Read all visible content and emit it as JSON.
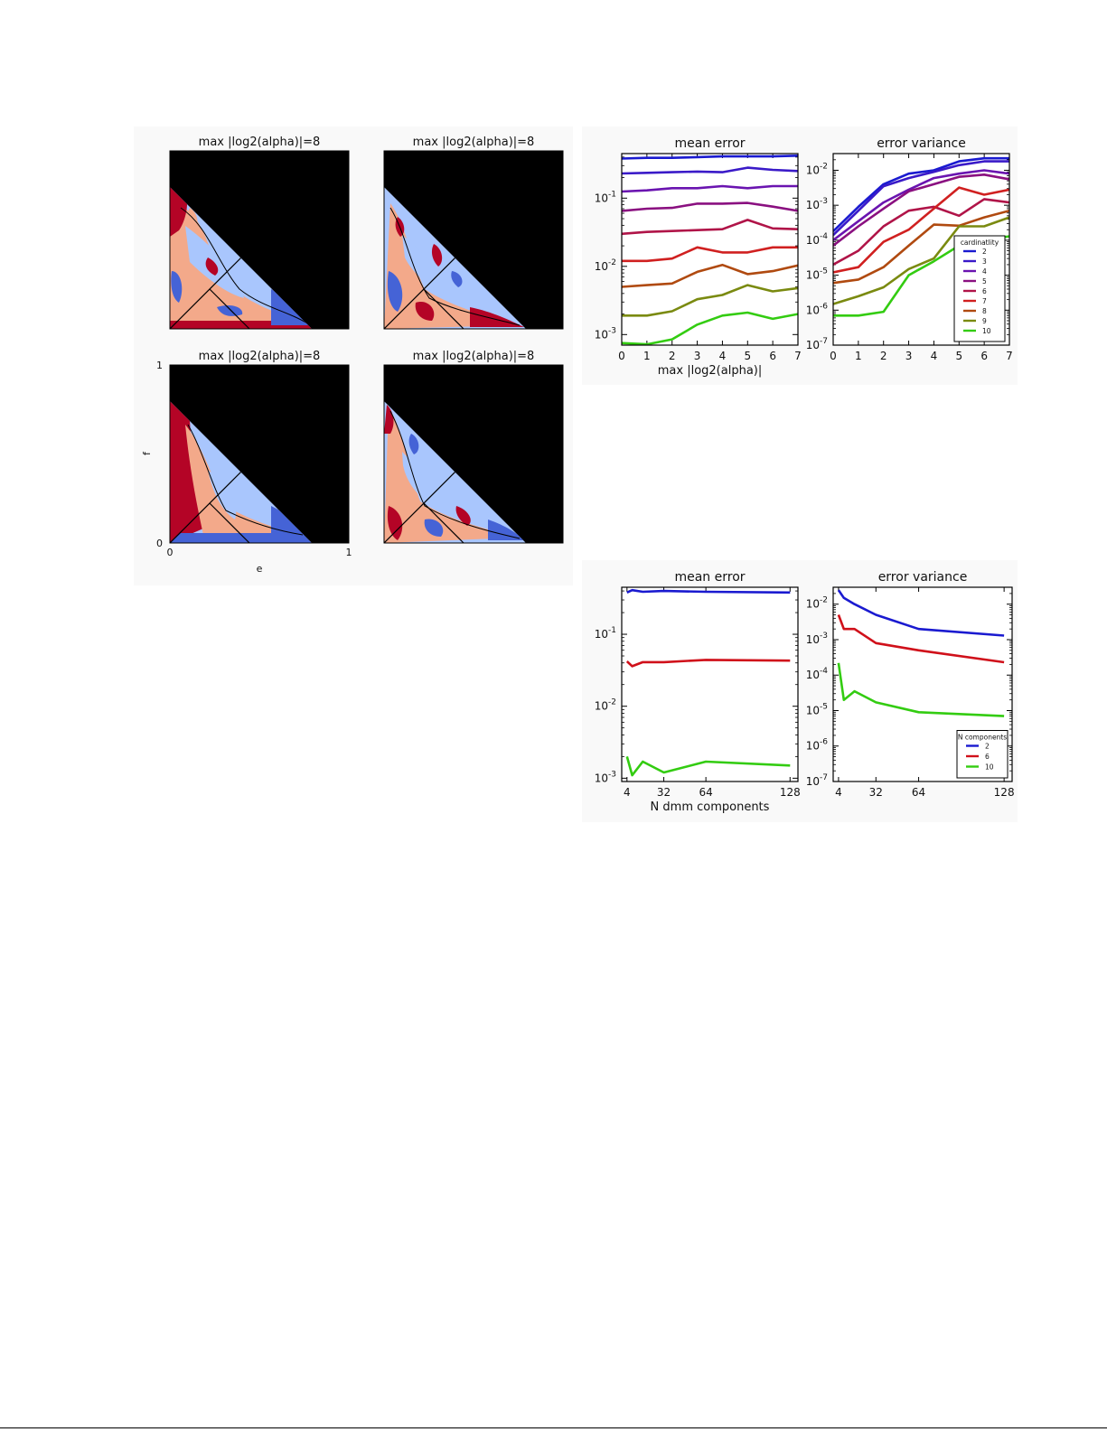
{
  "figure_left": {
    "panel_title": "max |log2(alpha)|=8",
    "panel_titles": [
      "max |log2(alpha)|=8",
      "max |log2(alpha)|=8",
      "max |log2(alpha)|=8",
      "max |log2(alpha)|=8"
    ],
    "xlabel": "e",
    "ylabel": "f",
    "x_ticks": [
      "0",
      "1"
    ],
    "y_ticks": [
      "1",
      "0"
    ],
    "colors": {
      "background": "#000000",
      "dark_red": "#b40426",
      "light_red": "#f3a98a",
      "light_blue": "#a9c6fd",
      "dark_blue": "#4563d6"
    }
  },
  "chart_data": [
    {
      "type": "line",
      "title": "mean error",
      "xlabel": "max |log2(alpha)|",
      "ylabel": "",
      "yscale": "log",
      "x": [
        0,
        1,
        2,
        3,
        4,
        5,
        6,
        7
      ],
      "xlim": [
        0,
        7
      ],
      "ylim": [
        0.0007,
        0.45
      ],
      "x_ticks": [
        "0",
        "1",
        "2",
        "3",
        "4",
        "5",
        "6",
        "7"
      ],
      "y_ticks": [
        {
          "base": "10",
          "exp": "-1",
          "value": 0.1
        },
        {
          "base": "10",
          "exp": "-2",
          "value": 0.01
        },
        {
          "base": "10",
          "exp": "-3",
          "value": 0.001
        }
      ],
      "series": [
        {
          "name": "2",
          "color": "#1a1ad0",
          "values": [
            0.38,
            0.39,
            0.39,
            0.4,
            0.41,
            0.41,
            0.41,
            0.42
          ]
        },
        {
          "name": "3",
          "color": "#3a1ac8",
          "values": [
            0.23,
            0.235,
            0.24,
            0.245,
            0.24,
            0.28,
            0.26,
            0.25
          ]
        },
        {
          "name": "4",
          "color": "#6a14b0",
          "values": [
            0.125,
            0.13,
            0.14,
            0.14,
            0.15,
            0.14,
            0.15,
            0.15
          ]
        },
        {
          "name": "5",
          "color": "#8a1080",
          "values": [
            0.065,
            0.07,
            0.072,
            0.083,
            0.083,
            0.085,
            0.075,
            0.065
          ]
        },
        {
          "name": "6",
          "color": "#b01448",
          "values": [
            0.03,
            0.032,
            0.033,
            0.034,
            0.035,
            0.048,
            0.036,
            0.035
          ]
        },
        {
          "name": "7",
          "color": "#d02020",
          "values": [
            0.012,
            0.012,
            0.013,
            0.019,
            0.016,
            0.016,
            0.019,
            0.019
          ]
        },
        {
          "name": "8",
          "color": "#b04a10",
          "values": [
            0.005,
            0.0053,
            0.0056,
            0.0083,
            0.0105,
            0.0077,
            0.0085,
            0.0103
          ]
        },
        {
          "name": "9",
          "color": "#7a8a10",
          "values": [
            0.0019,
            0.0019,
            0.0022,
            0.0033,
            0.0038,
            0.0053,
            0.0043,
            0.0048
          ]
        },
        {
          "name": "10",
          "color": "#33cc11",
          "values": [
            0.00075,
            0.00072,
            0.00085,
            0.0014,
            0.0019,
            0.0021,
            0.0017,
            0.002
          ]
        }
      ]
    },
    {
      "type": "line",
      "title": "error variance",
      "xlabel": "",
      "ylabel": "",
      "yscale": "log",
      "x": [
        0,
        1,
        2,
        3,
        4,
        5,
        6,
        7
      ],
      "xlim": [
        0,
        7
      ],
      "ylim": [
        1e-07,
        0.03
      ],
      "x_ticks": [
        "0",
        "1",
        "2",
        "3",
        "4",
        "5",
        "6",
        "7"
      ],
      "y_ticks": [
        {
          "base": "10",
          "exp": "-2",
          "value": 0.01
        },
        {
          "base": "10",
          "exp": "-3",
          "value": 0.001
        },
        {
          "base": "10",
          "exp": "-4",
          "value": 0.0001
        },
        {
          "base": "10",
          "exp": "-5",
          "value": 1e-05
        },
        {
          "base": "10",
          "exp": "-6",
          "value": 1e-06
        },
        {
          "base": "10",
          "exp": "-7",
          "value": 1e-07
        }
      ],
      "legend": {
        "title": "cardinatlity",
        "position": "lower right"
      },
      "series": [
        {
          "name": "2",
          "color": "#1a1ad0",
          "values": [
            0.00018,
            0.0009,
            0.004,
            0.008,
            0.01,
            0.018,
            0.022,
            0.022
          ]
        },
        {
          "name": "3",
          "color": "#3a1ac8",
          "values": [
            0.00014,
            0.0007,
            0.0035,
            0.006,
            0.009,
            0.014,
            0.018,
            0.018
          ]
        },
        {
          "name": "4",
          "color": "#6a14b0",
          "values": [
            0.0001,
            0.00035,
            0.0012,
            0.0028,
            0.006,
            0.008,
            0.01,
            0.008
          ]
        },
        {
          "name": "5",
          "color": "#8a1080",
          "values": [
            7e-05,
            0.00025,
            0.0008,
            0.0025,
            0.004,
            0.0065,
            0.0075,
            0.0055
          ]
        },
        {
          "name": "6",
          "color": "#b01448",
          "values": [
            2e-05,
            5e-05,
            0.00025,
            0.0007,
            0.0009,
            0.0005,
            0.0015,
            0.0012
          ]
        },
        {
          "name": "7",
          "color": "#d02020",
          "values": [
            1.2e-05,
            1.7e-05,
            9e-05,
            0.0002,
            0.0008,
            0.0032,
            0.002,
            0.0028
          ]
        },
        {
          "name": "8",
          "color": "#b04a10",
          "values": [
            6e-06,
            7.5e-06,
            1.7e-05,
            7e-05,
            0.00028,
            0.00026,
            0.00045,
            0.0007
          ]
        },
        {
          "name": "9",
          "color": "#7a8a10",
          "values": [
            1.5e-06,
            2.5e-06,
            4.5e-06,
            1.5e-05,
            3e-05,
            0.00025,
            0.00025,
            0.00045
          ]
        },
        {
          "name": "10",
          "color": "#33cc11",
          "values": [
            7e-07,
            7e-07,
            9e-07,
            1e-05,
            2.5e-05,
            7e-05,
            0.0001,
            0.00013
          ]
        }
      ]
    },
    {
      "type": "line",
      "title": "mean error",
      "xlabel": "N dmm components",
      "ylabel": "",
      "yscale": "log",
      "x": [
        4,
        8,
        16,
        32,
        64,
        128
      ],
      "xlim": [
        0,
        134
      ],
      "ylim": [
        0.0009,
        0.45
      ],
      "x_ticks": [
        "4",
        "32",
        "64",
        "128"
      ],
      "x_tick_values": [
        4,
        32,
        64,
        128
      ],
      "y_ticks": [
        {
          "base": "10",
          "exp": "-1",
          "value": 0.1
        },
        {
          "base": "10",
          "exp": "-2",
          "value": 0.01
        },
        {
          "base": "10",
          "exp": "-3",
          "value": 0.001
        }
      ],
      "series": [
        {
          "name": "2",
          "color": "#1a1ad0",
          "values": [
            0.38,
            0.41,
            0.39,
            0.4,
            0.39,
            0.38
          ]
        },
        {
          "name": "6",
          "color": "#d0101a",
          "values": [
            0.042,
            0.036,
            0.041,
            0.041,
            0.044,
            0.043
          ]
        },
        {
          "name": "10",
          "color": "#33cc11",
          "values": [
            0.002,
            0.0011,
            0.0017,
            0.0012,
            0.0017,
            0.0015
          ]
        }
      ]
    },
    {
      "type": "line",
      "title": "error variance",
      "xlabel": "",
      "ylabel": "",
      "yscale": "log",
      "x": [
        4,
        8,
        16,
        32,
        64,
        128
      ],
      "xlim": [
        0,
        134
      ],
      "ylim": [
        1e-07,
        0.03
      ],
      "x_ticks": [
        "4",
        "32",
        "64",
        "128"
      ],
      "x_tick_values": [
        4,
        32,
        64,
        128
      ],
      "y_ticks": [
        {
          "base": "10",
          "exp": "-2",
          "value": 0.01
        },
        {
          "base": "10",
          "exp": "-3",
          "value": 0.001
        },
        {
          "base": "10",
          "exp": "-4",
          "value": 0.0001
        },
        {
          "base": "10",
          "exp": "-5",
          "value": 1e-05
        },
        {
          "base": "10",
          "exp": "-6",
          "value": 1e-06
        },
        {
          "base": "10",
          "exp": "-7",
          "value": 1e-07
        }
      ],
      "legend": {
        "title": "N components",
        "position": "lower right"
      },
      "series": [
        {
          "name": "2",
          "color": "#1a1ad0",
          "values": [
            0.025,
            0.015,
            0.01,
            0.005,
            0.002,
            0.0013
          ]
        },
        {
          "name": "6",
          "color": "#d0101a",
          "values": [
            0.005,
            0.002,
            0.002,
            0.0008,
            0.0005,
            0.00023
          ]
        },
        {
          "name": "10",
          "color": "#33cc11",
          "values": [
            0.00022,
            2e-05,
            3.5e-05,
            1.7e-05,
            9e-06,
            7e-06
          ]
        }
      ]
    }
  ]
}
